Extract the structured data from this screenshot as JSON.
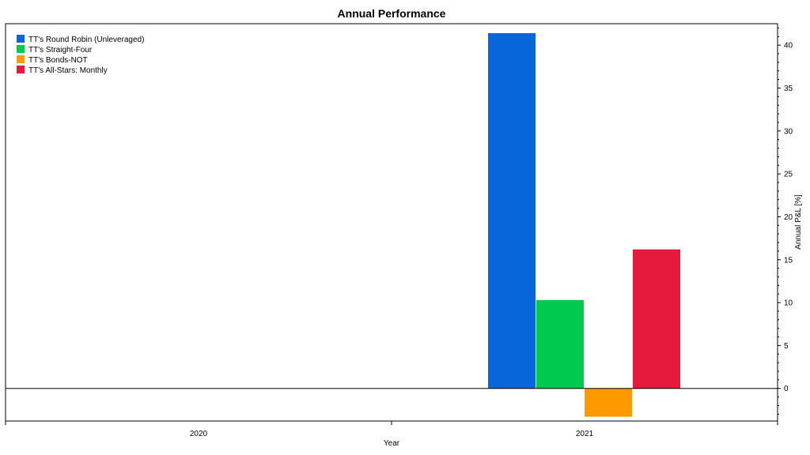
{
  "chart_data": {
    "type": "bar",
    "title": "Annual Performance",
    "xlabel": "Year",
    "ylabel": "Annual P&L [%]",
    "categories": [
      "2020",
      "2021"
    ],
    "ylim": [
      -3.8,
      42.5
    ],
    "yticks": [
      0,
      5,
      10,
      15,
      20,
      25,
      30,
      35,
      40
    ],
    "y_axis_position": "right",
    "grid": false,
    "legend_position": "top-left",
    "series": [
      {
        "name": "TT's Round Robin (Unleveraged)",
        "color": "#0766d9",
        "values": [
          null,
          41.4
        ]
      },
      {
        "name": "TT's Straight-Four",
        "color": "#00c94f",
        "values": [
          null,
          10.3
        ]
      },
      {
        "name": "TT's Bonds-NOT",
        "color": "#fe9a00",
        "values": [
          null,
          -3.3
        ]
      },
      {
        "name": "TT's All-Stars: Monthly",
        "color": "#e5193b",
        "values": [
          null,
          16.2
        ]
      }
    ]
  }
}
